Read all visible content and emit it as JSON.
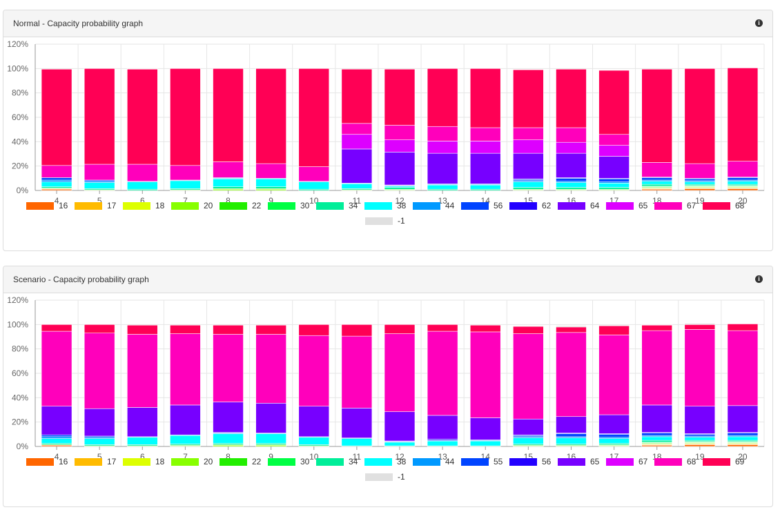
{
  "chart_data": [
    {
      "type": "bar",
      "stacked": true,
      "title": "Normal - Capacity probability graph",
      "ylim": [
        0,
        120
      ],
      "yticks": [
        "0%",
        "20%",
        "40%",
        "60%",
        "80%",
        "100%",
        "120%"
      ],
      "categories": [
        "4",
        "5",
        "6",
        "7",
        "8",
        "9",
        "10",
        "11",
        "12",
        "13",
        "14",
        "15",
        "16",
        "17",
        "18",
        "19",
        "20"
      ],
      "grid": true,
      "legend_position": "bottom",
      "series": [
        {
          "name": "16",
          "color": "#ff6600",
          "values": [
            1,
            0,
            0,
            0,
            0,
            0,
            0,
            0,
            0,
            0,
            0,
            0,
            0,
            0,
            1,
            1.5,
            1.5
          ]
        },
        {
          "name": "17",
          "color": "#ffbb00",
          "values": [
            0,
            0,
            0,
            0,
            0,
            0,
            0,
            0,
            0,
            0,
            0,
            0,
            0,
            0,
            0.5,
            0.5,
            0.5
          ]
        },
        {
          "name": "18",
          "color": "#ddff00",
          "values": [
            0,
            0,
            0,
            0,
            0,
            0,
            0,
            0,
            0,
            0,
            0,
            0,
            0,
            0,
            0.5,
            0.5,
            0.5
          ]
        },
        {
          "name": "20",
          "color": "#88ff00",
          "values": [
            0.5,
            0.5,
            0,
            0.5,
            1,
            1,
            0,
            0.5,
            0.5,
            0,
            0,
            0.5,
            0.5,
            0.5,
            0.5,
            0.5,
            0.5
          ]
        },
        {
          "name": "22",
          "color": "#22ee00",
          "values": [
            0.5,
            0,
            0,
            0,
            0.5,
            0.5,
            0,
            0,
            0.5,
            0,
            0,
            0.5,
            0.5,
            0.5,
            0.5,
            0.5,
            0.5
          ]
        },
        {
          "name": "30",
          "color": "#00ff44",
          "values": [
            0,
            0,
            0,
            0,
            0,
            0,
            0,
            0,
            0,
            0,
            0,
            0,
            0,
            0,
            0.5,
            0.5,
            0.5
          ]
        },
        {
          "name": "34",
          "color": "#00ee99",
          "values": [
            1,
            1,
            1,
            1,
            1.5,
            1.5,
            1,
            1,
            1.5,
            1,
            1,
            1.5,
            1.5,
            1.5,
            1.5,
            1,
            1
          ]
        },
        {
          "name": "38",
          "color": "#00ffff",
          "values": [
            4,
            5,
            6,
            6.5,
            6.5,
            6.5,
            6,
            4,
            1,
            3.5,
            3.5,
            4.5,
            4,
            3.5,
            2.5,
            2,
            2.5
          ]
        },
        {
          "name": "44",
          "color": "#0099ff",
          "values": [
            1.5,
            1,
            0.5,
            0.5,
            0.5,
            0.5,
            0.5,
            0.5,
            0.5,
            0.5,
            0.5,
            1,
            1,
            1,
            1,
            1,
            1
          ]
        },
        {
          "name": "56",
          "color": "#0044ff",
          "values": [
            2,
            1,
            0,
            0,
            0.5,
            0,
            0,
            0,
            0,
            0,
            0,
            1,
            2.5,
            2.5,
            2,
            1.5,
            2
          ]
        },
        {
          "name": "62",
          "color": "#2200ff",
          "values": [
            0,
            0,
            0,
            0,
            0,
            0,
            0,
            0,
            0.5,
            0.5,
            0.5,
            0.5,
            0.5,
            0.5,
            0.5,
            0.5,
            0.5
          ]
        },
        {
          "name": "64",
          "color": "#7700ff",
          "values": [
            0,
            0,
            0,
            0,
            0,
            0,
            0,
            28,
            27,
            25,
            25,
            21,
            20,
            18,
            0,
            0,
            0
          ]
        },
        {
          "name": "65",
          "color": "#dd00ff",
          "values": [
            0,
            0,
            0,
            0,
            0,
            0,
            0,
            12,
            10,
            10,
            10,
            11,
            9,
            9,
            0,
            0,
            0
          ]
        },
        {
          "name": "67",
          "color": "#ff00bb",
          "values": [
            10,
            13,
            14,
            12,
            13,
            12,
            12,
            9,
            12,
            12,
            11,
            10,
            12,
            9,
            12,
            12,
            13
          ]
        },
        {
          "name": "68",
          "color": "#ff0055",
          "values": [
            79,
            78.5,
            78,
            79.5,
            76.5,
            78,
            80.5,
            44.5,
            46,
            47.5,
            48.5,
            47.5,
            48,
            52.5,
            76.5,
            78,
            76.5
          ]
        },
        {
          "name": "-1",
          "color": "#e0e0e0",
          "values": [
            0,
            0,
            0.5,
            0,
            0,
            0,
            0,
            0,
            0,
            0,
            0,
            0,
            0,
            0,
            0,
            0,
            0
          ]
        }
      ]
    },
    {
      "type": "bar",
      "stacked": true,
      "title": "Scenario - Capacity probability graph",
      "ylim": [
        0,
        120
      ],
      "yticks": [
        "0%",
        "20%",
        "40%",
        "60%",
        "80%",
        "100%",
        "120%"
      ],
      "categories": [
        "4",
        "5",
        "6",
        "7",
        "8",
        "9",
        "10",
        "11",
        "12",
        "13",
        "14",
        "15",
        "16",
        "17",
        "18",
        "19",
        "20"
      ],
      "grid": true,
      "legend_position": "bottom",
      "series": [
        {
          "name": "16",
          "color": "#ff6600",
          "values": [
            1,
            0,
            0,
            0,
            0,
            0,
            0,
            0,
            0,
            0,
            0,
            0,
            0,
            0,
            1,
            1.5,
            1.5
          ]
        },
        {
          "name": "17",
          "color": "#ffbb00",
          "values": [
            0,
            0,
            0,
            0,
            0,
            0,
            0,
            0,
            0,
            0,
            0,
            0,
            0,
            0,
            0.5,
            0.5,
            0.5
          ]
        },
        {
          "name": "18",
          "color": "#ddff00",
          "values": [
            0,
            0,
            0,
            0,
            0,
            0,
            0,
            0,
            0,
            0,
            0,
            0,
            0,
            0,
            0.5,
            0.5,
            0.5
          ]
        },
        {
          "name": "20",
          "color": "#88ff00",
          "values": [
            0.5,
            0.5,
            0.5,
            0.5,
            1,
            1,
            0.5,
            0,
            0,
            0,
            0,
            0.5,
            0.5,
            0.5,
            0.5,
            0.5,
            0.5
          ]
        },
        {
          "name": "22",
          "color": "#22ee00",
          "values": [
            0,
            0,
            0,
            0.5,
            0.5,
            0.5,
            0,
            0,
            0,
            0,
            0,
            0.5,
            0.5,
            0.5,
            0.5,
            0.5,
            0.5
          ]
        },
        {
          "name": "30",
          "color": "#00ff44",
          "values": [
            0,
            0,
            0,
            0,
            0,
            0,
            0,
            0,
            0,
            0,
            0,
            0,
            0,
            0.5,
            0.5,
            0.5,
            0.5
          ]
        },
        {
          "name": "34",
          "color": "#00ee99",
          "values": [
            1,
            1,
            1,
            1,
            1,
            1,
            1,
            0.5,
            0.5,
            0.5,
            0.5,
            1,
            1,
            1,
            1.5,
            1,
            1
          ]
        },
        {
          "name": "38",
          "color": "#00ffff",
          "values": [
            4,
            5,
            6,
            7,
            8,
            8,
            6,
            6,
            3,
            4,
            4,
            5,
            5,
            4,
            3,
            2.5,
            3
          ]
        },
        {
          "name": "44",
          "color": "#0099ff",
          "values": [
            1.5,
            1,
            0.5,
            0.5,
            0.5,
            0.5,
            0.5,
            0.5,
            0.5,
            0.5,
            0.5,
            1,
            1,
            1,
            1,
            1,
            1
          ]
        },
        {
          "name": "55",
          "color": "#0044ff",
          "values": [
            1.5,
            1,
            0,
            0,
            0.5,
            0,
            0,
            0,
            0,
            0,
            0,
            1,
            2.5,
            2.5,
            2,
            1.5,
            2
          ]
        },
        {
          "name": "56",
          "color": "#2200ff",
          "values": [
            0,
            0,
            0,
            0,
            0,
            0,
            0,
            0,
            0.5,
            1,
            0.5,
            0.5,
            0.5,
            0.5,
            0.5,
            0.5,
            0.5
          ]
        },
        {
          "name": "65",
          "color": "#7700ff",
          "values": [
            23.5,
            22.5,
            24,
            24.5,
            25,
            24.5,
            25,
            24.5,
            24,
            19.5,
            18,
            13,
            13.5,
            15.5,
            22.5,
            22.5,
            22
          ]
        },
        {
          "name": "67",
          "color": "#dd00ff",
          "values": [
            0,
            0,
            0,
            0,
            0,
            0,
            0,
            0,
            0,
            0,
            0,
            0,
            0,
            0,
            0,
            0,
            0
          ]
        },
        {
          "name": "68",
          "color": "#ff00bb",
          "values": [
            61.5,
            62,
            60,
            58.5,
            55.5,
            56.5,
            58,
            59,
            64,
            69,
            70.5,
            70,
            69,
            65.5,
            61,
            63,
            61.5
          ]
        },
        {
          "name": "69",
          "color": "#ff0055",
          "values": [
            5.5,
            7,
            7.5,
            7,
            7.5,
            7.5,
            9,
            9.5,
            7.5,
            5.5,
            5.5,
            6,
            4.5,
            7.5,
            4.5,
            4,
            5.5
          ]
        },
        {
          "name": "-1",
          "color": "#e0e0e0",
          "values": [
            0,
            0,
            0,
            0,
            0,
            0,
            0,
            0,
            0,
            0,
            0,
            0.5,
            1,
            0.5,
            0.5,
            1,
            0
          ]
        }
      ]
    }
  ]
}
